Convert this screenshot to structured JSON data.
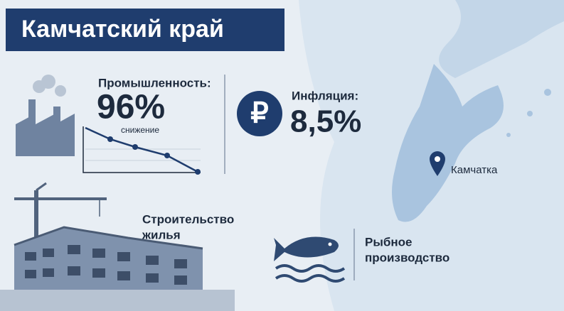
{
  "header": {
    "title": "Камчатский край"
  },
  "industry": {
    "label": "Промышленность:",
    "value": "96%",
    "note": "снижение"
  },
  "inflation": {
    "icon": "₽",
    "label": "Инфляция:",
    "value": "8,5%"
  },
  "map": {
    "place": "Камчатка"
  },
  "construction": {
    "label_lines": [
      "Строительство",
      "жилья"
    ]
  },
  "fishing": {
    "label_lines": [
      "Рыбное",
      "производство"
    ]
  }
}
